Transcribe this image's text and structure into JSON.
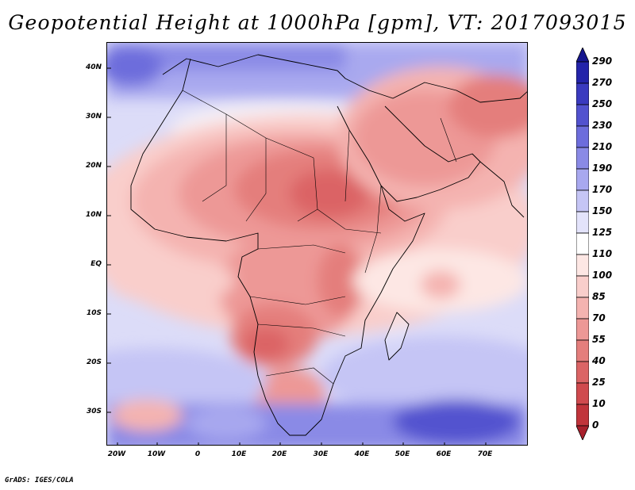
{
  "title": "Geopotential Height at 1000hPa [gpm], VT: 2017093015",
  "credit": "GrADS: IGES/COLA",
  "map": {
    "lat_labels": [
      "40N",
      "30N",
      "20N",
      "10N",
      "EQ",
      "10S",
      "20S",
      "30S"
    ],
    "lon_labels": [
      "20W",
      "10W",
      "0",
      "10E",
      "20E",
      "30E",
      "40E",
      "50E",
      "60E",
      "70E"
    ],
    "lat_range": [
      -37,
      45
    ],
    "lon_range": [
      -23,
      80
    ]
  },
  "colorbar": {
    "levels": [
      "0",
      "10",
      "25",
      "40",
      "55",
      "70",
      "85",
      "100",
      "110",
      "125",
      "150",
      "170",
      "190",
      "210",
      "230",
      "250",
      "270",
      "290"
    ],
    "colors": [
      "#a8202c",
      "#c1343b",
      "#d04a4e",
      "#db6465",
      "#e47e7c",
      "#ed9896",
      "#f4b3b0",
      "#f9cecb",
      "#fde7e4",
      "#ffffff",
      "#e3e3fb",
      "#c5c5f5",
      "#a8a8ef",
      "#8a8ae6",
      "#6d6ddc",
      "#5252cf",
      "#3a3abf",
      "#2424aa",
      "#16168f"
    ]
  }
}
